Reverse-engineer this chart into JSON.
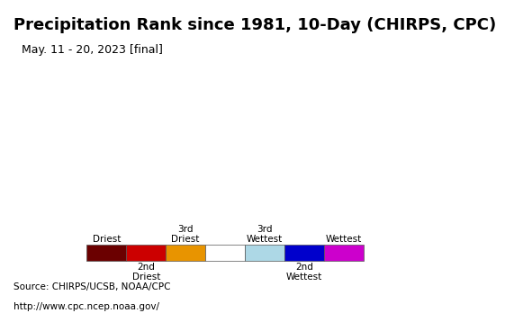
{
  "title": "Precipitation Rank since 1981, 10-Day (CHIRPS, CPC)",
  "subtitle": "May. 11 - 20, 2023 [final]",
  "source_line1": "Source: CHIRPS/UCSB, NOAA/CPC",
  "source_line2": "http://www.cpc.ncep.noaa.gov/",
  "legend_colors": [
    "#6b0000",
    "#cc0000",
    "#e89400",
    "#ffffff",
    "#add8e6",
    "#0000cc",
    "#cc00cc"
  ],
  "legend_top_labels": [
    "Driest",
    "",
    "3rd\nDriest",
    "",
    "3rd\nWettest",
    "",
    "Wettest"
  ],
  "legend_bottom_labels": [
    "",
    "2nd\nDriest",
    "",
    "",
    "",
    "2nd\nWettest",
    ""
  ],
  "bg_color": "#add8e6",
  "map_bg": "#add8e6",
  "title_fontsize": 13,
  "subtitle_fontsize": 9,
  "source_fontsize": 7.5
}
